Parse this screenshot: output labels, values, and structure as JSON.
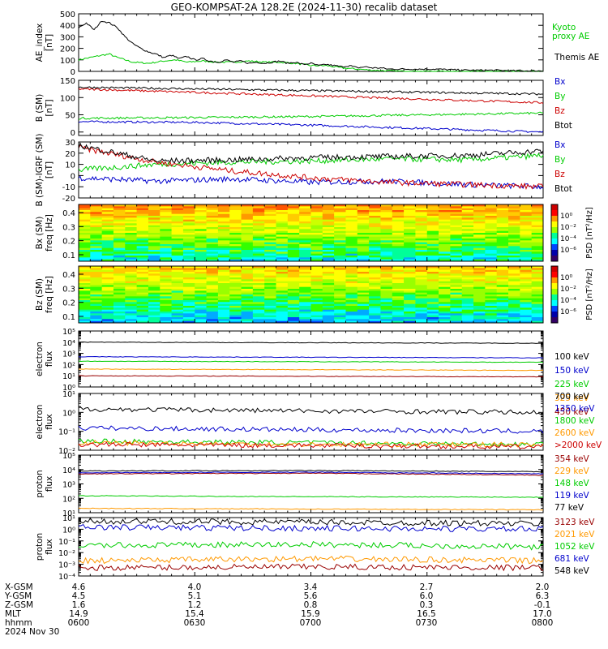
{
  "title": "GEO-KOMPSAT-2A 128.2E (2024-11-30) recalib dataset",
  "chart_data": [
    {
      "type": "line",
      "panel": "ae",
      "ylabel": "AE_index\n[nT]",
      "ylim": [
        0,
        500
      ],
      "yticks": [
        "0",
        "100",
        "200",
        "300",
        "400",
        "500"
      ],
      "x_hhmm": [
        "0600",
        "0630",
        "0700",
        "0730",
        "0800"
      ],
      "series": [
        {
          "name": "Kyoto proxy AE",
          "color": "#00cc00",
          "values": [
            [
              0,
              100
            ],
            [
              3,
              120
            ],
            [
              6,
              140
            ],
            [
              8,
              150
            ],
            [
              10,
              120
            ],
            [
              14,
              80
            ],
            [
              18,
              70
            ],
            [
              22,
              90
            ],
            [
              25,
              100
            ],
            [
              28,
              80
            ],
            [
              32,
              90
            ],
            [
              36,
              80
            ],
            [
              40,
              80
            ],
            [
              44,
              90
            ],
            [
              48,
              80
            ],
            [
              52,
              80
            ],
            [
              56,
              70
            ],
            [
              60,
              50
            ],
            [
              64,
              50
            ],
            [
              68,
              30
            ],
            [
              72,
              20
            ],
            [
              76,
              10
            ],
            [
              80,
              5
            ],
            [
              84,
              0
            ],
            [
              88,
              0
            ],
            [
              92,
              0
            ],
            [
              96,
              0
            ],
            [
              100,
              0
            ],
            [
              104,
              0
            ],
            [
              108,
              0
            ],
            [
              112,
              0
            ],
            [
              116,
              0
            ],
            [
              120,
              0
            ]
          ]
        },
        {
          "name": "Themis AE",
          "color": "#000000",
          "values": [
            [
              0,
              380
            ],
            [
              2,
              420
            ],
            [
              4,
              360
            ],
            [
              6,
              440
            ],
            [
              8,
              420
            ],
            [
              10,
              380
            ],
            [
              12,
              300
            ],
            [
              14,
              240
            ],
            [
              16,
              200
            ],
            [
              18,
              170
            ],
            [
              20,
              150
            ],
            [
              22,
              120
            ],
            [
              24,
              140
            ],
            [
              26,
              110
            ],
            [
              28,
              130
            ],
            [
              30,
              100
            ],
            [
              32,
              110
            ],
            [
              34,
              90
            ],
            [
              36,
              80
            ],
            [
              38,
              100
            ],
            [
              40,
              80
            ],
            [
              42,
              90
            ],
            [
              44,
              70
            ],
            [
              46,
              80
            ],
            [
              48,
              70
            ],
            [
              50,
              80
            ],
            [
              52,
              90
            ],
            [
              54,
              70
            ],
            [
              56,
              80
            ],
            [
              58,
              60
            ],
            [
              60,
              70
            ],
            [
              62,
              50
            ],
            [
              64,
              60
            ],
            [
              66,
              50
            ],
            [
              68,
              40
            ],
            [
              70,
              50
            ],
            [
              72,
              30
            ],
            [
              74,
              40
            ],
            [
              76,
              30
            ],
            [
              78,
              30
            ],
            [
              80,
              20
            ],
            [
              84,
              20
            ],
            [
              88,
              20
            ],
            [
              92,
              20
            ],
            [
              96,
              15
            ],
            [
              100,
              10
            ],
            [
              104,
              10
            ],
            [
              108,
              10
            ],
            [
              112,
              5
            ],
            [
              116,
              5
            ],
            [
              120,
              5
            ]
          ]
        }
      ]
    },
    {
      "type": "line",
      "panel": "b-sm",
      "ylabel": "B (SM)\n[nT]",
      "ylim": [
        -10,
        150
      ],
      "yticks": [
        "0",
        "50",
        "100",
        "150"
      ],
      "series": [
        {
          "name": "Bx",
          "color": "#0000cc",
          "values": [
            [
              0,
              30
            ],
            [
              30,
              28
            ],
            [
              60,
              20
            ],
            [
              90,
              10
            ],
            [
              120,
              0
            ]
          ]
        },
        {
          "name": "By",
          "color": "#00cc00",
          "values": [
            [
              0,
              40
            ],
            [
              30,
              42
            ],
            [
              60,
              45
            ],
            [
              90,
              50
            ],
            [
              120,
              55
            ]
          ]
        },
        {
          "name": "Bz",
          "color": "#cc0000",
          "values": [
            [
              0,
              125
            ],
            [
              30,
              115
            ],
            [
              60,
              105
            ],
            [
              90,
              95
            ],
            [
              120,
              85
            ]
          ]
        },
        {
          "name": "Btot",
          "color": "#000000",
          "values": [
            [
              0,
              130
            ],
            [
              30,
              125
            ],
            [
              60,
              120
            ],
            [
              90,
              115
            ],
            [
              120,
              110
            ]
          ]
        }
      ]
    },
    {
      "type": "line",
      "panel": "b-igrf",
      "ylabel": "B (SM)-IGRF (SM)\n[nT]",
      "ylim": [
        -20,
        30
      ],
      "yticks": [
        "-20",
        "-10",
        "0",
        "10",
        "20",
        "30"
      ],
      "series": [
        {
          "name": "Bx",
          "color": "#0000cc",
          "values": [
            [
              0,
              -2
            ],
            [
              20,
              -5
            ],
            [
              40,
              -3
            ],
            [
              60,
              -6
            ],
            [
              80,
              -5
            ],
            [
              100,
              -8
            ],
            [
              120,
              -10
            ]
          ]
        },
        {
          "name": "By",
          "color": "#00cc00",
          "values": [
            [
              0,
              5
            ],
            [
              20,
              10
            ],
            [
              40,
              12
            ],
            [
              60,
              13
            ],
            [
              80,
              15
            ],
            [
              100,
              14
            ],
            [
              120,
              18
            ]
          ]
        },
        {
          "name": "Bz",
          "color": "#cc0000",
          "values": [
            [
              0,
              25
            ],
            [
              20,
              12
            ],
            [
              40,
              4
            ],
            [
              60,
              -2
            ],
            [
              80,
              -6
            ],
            [
              100,
              -8
            ],
            [
              120,
              -10
            ]
          ]
        },
        {
          "name": "Btot",
          "color": "#000000",
          "values": [
            [
              0,
              27
            ],
            [
              20,
              13
            ],
            [
              40,
              14
            ],
            [
              60,
              16
            ],
            [
              80,
              17
            ],
            [
              100,
              18
            ],
            [
              120,
              22
            ]
          ]
        }
      ]
    },
    {
      "type": "heatmap",
      "panel": "bx-spec",
      "ylabel": "Bx (SM)\nfreq [Hz]",
      "yticks": [
        "0.1",
        "0.2",
        "0.3",
        "0.4"
      ],
      "colorbar_label": "PSD [nT²/Hz]",
      "colorbar_ticks": [
        "10⁰",
        "10⁻²",
        "10⁻⁴",
        "10⁻⁶"
      ]
    },
    {
      "type": "heatmap",
      "panel": "bz-spec",
      "ylabel": "Bz (SM)\nfreq [Hz]",
      "yticks": [
        "0.1",
        "0.2",
        "0.3",
        "0.4"
      ],
      "colorbar_label": "PSD [nT²/Hz]",
      "colorbar_ticks": [
        "10⁰",
        "10⁻²",
        "10⁻⁴",
        "10⁻⁶"
      ]
    },
    {
      "type": "line",
      "panel": "electron-low",
      "ylabel": "electron\nflux",
      "yticks": [
        "10⁰",
        "10¹",
        "10²",
        "10³",
        "10⁴",
        "10⁵"
      ],
      "series": [
        {
          "name": "100 keV",
          "color": "#000000",
          "values": [
            [
              0,
              10000
            ],
            [
              60,
              9000
            ],
            [
              120,
              8000
            ]
          ]
        },
        {
          "name": "150 keV",
          "color": "#0000cc",
          "values": [
            [
              0,
              500
            ],
            [
              60,
              450
            ],
            [
              120,
              400
            ]
          ]
        },
        {
          "name": "225 keV",
          "color": "#00cc00",
          "values": [
            [
              0,
              200
            ],
            [
              60,
              180
            ],
            [
              120,
              160
            ]
          ]
        },
        {
          "name": "325 keV",
          "color": "#ff9900",
          "values": [
            [
              0,
              40
            ],
            [
              60,
              35
            ],
            [
              120,
              30
            ]
          ]
        },
        {
          "name": "450 keV",
          "color": "#990000",
          "values": [
            [
              0,
              10
            ],
            [
              60,
              9
            ],
            [
              120,
              8
            ]
          ]
        }
      ]
    },
    {
      "type": "line",
      "panel": "electron-high",
      "ylabel": "electron\nflux",
      "yticks": [
        "10⁻²",
        "10⁻¹",
        "10⁰",
        "10¹"
      ],
      "series": [
        {
          "name": "700 keV",
          "color": "#000000",
          "values": [
            [
              0,
              1.5
            ],
            [
              60,
              1.2
            ],
            [
              120,
              1.0
            ]
          ]
        },
        {
          "name": "1350 keV",
          "color": "#0000cc",
          "values": [
            [
              0,
              0.15
            ],
            [
              60,
              0.12
            ],
            [
              120,
              0.1
            ]
          ]
        },
        {
          "name": "1800 keV",
          "color": "#00cc00",
          "values": [
            [
              0,
              0.03
            ],
            [
              60,
              0.025
            ],
            [
              120,
              0.02
            ]
          ]
        },
        {
          "name": "2600 keV",
          "color": "#ff9900",
          "values": [
            [
              0,
              0.025
            ],
            [
              60,
              0.02
            ],
            [
              120,
              0.02
            ]
          ]
        },
        {
          "name": ">2000 keV",
          "color": "#cc0000",
          "values": [
            [
              0,
              0.02
            ],
            [
              60,
              0.018
            ],
            [
              120,
              0.015
            ]
          ]
        }
      ]
    },
    {
      "type": "line",
      "panel": "proton-low",
      "ylabel": "proton\nflux",
      "yticks": [
        "10¹",
        "10²",
        "10³",
        "10⁴",
        "10⁵"
      ],
      "series": [
        {
          "name": "354 keV",
          "color": "#990000",
          "values": [
            [
              0,
              5000
            ],
            [
              60,
              5500
            ],
            [
              120,
              4000
            ]
          ]
        },
        {
          "name": "229 keV",
          "color": "#ff9900",
          "values": [
            [
              0,
              20
            ],
            [
              60,
              18
            ],
            [
              120,
              16
            ]
          ]
        },
        {
          "name": "148 keV",
          "color": "#00cc00",
          "values": [
            [
              0,
              150
            ],
            [
              60,
              130
            ],
            [
              120,
              120
            ]
          ]
        },
        {
          "name": "119 keV",
          "color": "#0000cc",
          "values": [
            [
              0,
              6000
            ],
            [
              60,
              6500
            ],
            [
              120,
              5000
            ]
          ]
        },
        {
          "name": "77 keV",
          "color": "#000000",
          "values": [
            [
              0,
              8000
            ],
            [
              60,
              8500
            ],
            [
              120,
              7000
            ]
          ]
        }
      ]
    },
    {
      "type": "line",
      "panel": "proton-high",
      "ylabel": "proton\nflux",
      "yticks": [
        "10⁻⁴",
        "10⁻³",
        "10⁻²",
        "10⁻¹",
        "10⁰",
        "10¹"
      ],
      "series": [
        {
          "name": "3123 keV",
          "color": "#990000",
          "values": [
            [
              0,
              0.0005
            ],
            [
              60,
              0.0006
            ],
            [
              120,
              0.0005
            ]
          ]
        },
        {
          "name": "2021 keV",
          "color": "#ff9900",
          "values": [
            [
              0,
              0.002
            ],
            [
              60,
              0.003
            ],
            [
              120,
              0.002
            ]
          ]
        },
        {
          "name": "1052 keV",
          "color": "#00cc00",
          "values": [
            [
              0,
              0.04
            ],
            [
              60,
              0.05
            ],
            [
              120,
              0.03
            ]
          ]
        },
        {
          "name": "681 keV",
          "color": "#0000cc",
          "values": [
            [
              0,
              1.5
            ],
            [
              60,
              1.2
            ],
            [
              120,
              1.0
            ]
          ]
        },
        {
          "name": "548 keV",
          "color": "#000000",
          "values": [
            [
              0,
              5
            ],
            [
              60,
              4
            ],
            [
              120,
              3
            ]
          ]
        }
      ]
    }
  ],
  "footer": {
    "rows": [
      {
        "label": "X-GSM",
        "values": [
          "4.6",
          "4.0",
          "3.4",
          "2.7",
          "2.0"
        ]
      },
      {
        "label": "Y-GSM",
        "values": [
          "4.5",
          "5.1",
          "5.6",
          "6.0",
          "6.3"
        ]
      },
      {
        "label": "Z-GSM",
        "values": [
          "1.6",
          "1.2",
          "0.8",
          "0.3",
          "-0.1"
        ]
      },
      {
        "label": "MLT",
        "values": [
          "14.9",
          "15.4",
          "15.9",
          "16.5",
          "17.0"
        ]
      },
      {
        "label": "hhmm",
        "values": [
          "0600",
          "0630",
          "0700",
          "0730",
          "0800"
        ]
      }
    ],
    "date": "2024 Nov 30"
  }
}
